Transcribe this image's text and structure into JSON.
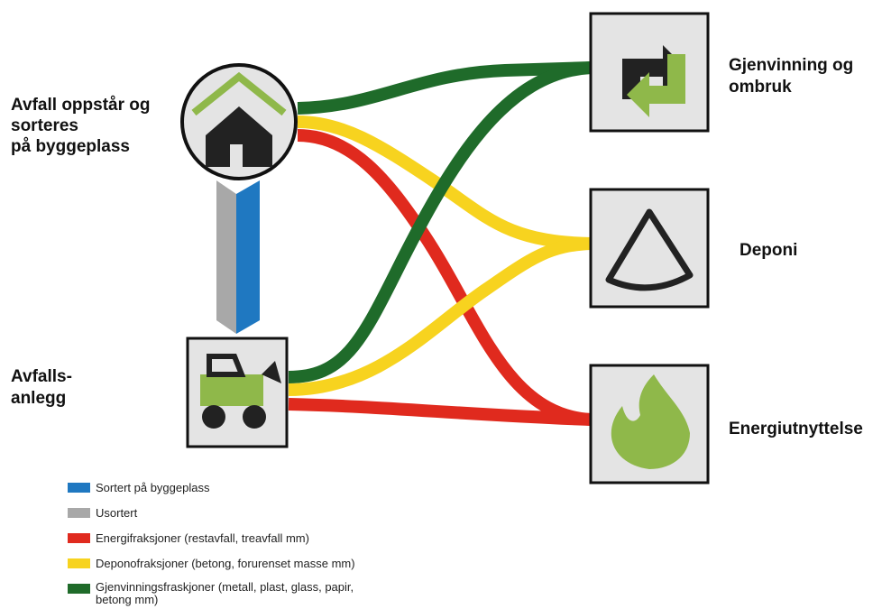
{
  "nodes": [
    {
      "label": [
        "Avfall oppstår og",
        "sorteres",
        "på byggeplass"
      ]
    },
    {
      "label": [
        "Avfalls-",
        "anlegg"
      ]
    },
    {
      "label": [
        "Gjenvinning og",
        "ombruk"
      ]
    },
    {
      "label": [
        "Deponi"
      ]
    },
    {
      "label": [
        "Energiutnyttelse"
      ]
    }
  ],
  "legend": [
    {
      "label": [
        "Sortert på byggeplass"
      ]
    },
    {
      "label": [
        "Usortert"
      ]
    },
    {
      "label": [
        "Energifraksjoner (restavfall, treavfall mm)"
      ]
    },
    {
      "label": [
        "Deponofraksjoner (betong, forurenset masse mm)"
      ]
    },
    {
      "label": [
        "Gjenvinningsfraskjoner (metall, plast, glass, papir,",
        "betong mm)"
      ]
    }
  ]
}
